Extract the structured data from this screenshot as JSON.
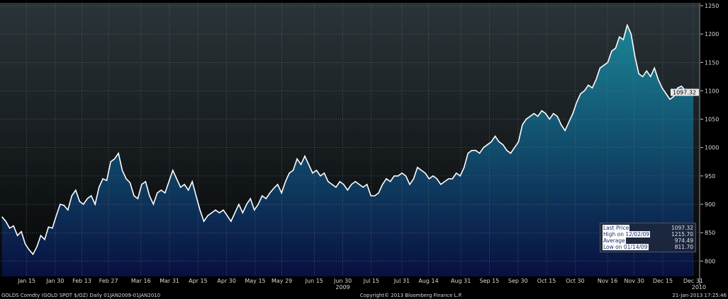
{
  "chart_data": {
    "type": "area",
    "title": "GOLDS Comdty (GOLD SPOT $/OZ)",
    "frequency": "Daily",
    "range_label": "01JAN2009-01JAN2010",
    "x_tick_labels": [
      "Jan 15",
      "Jan 30",
      "Feb 13",
      "Feb 27",
      "Mar 16",
      "Mar 31",
      "Apr 15",
      "Apr 30",
      "May 15",
      "May 29",
      "Jun 15",
      "Jun 30",
      "Jul 15",
      "Jul 31",
      "Aug 14",
      "Aug 31",
      "Sep 15",
      "Sep 30",
      "Oct 15",
      "Oct 30",
      "Nov 16",
      "Nov 30",
      "Dec 15",
      "Dec 31"
    ],
    "x_tick_days": [
      14,
      29,
      43,
      57,
      74,
      89,
      104,
      119,
      134,
      148,
      165,
      180,
      195,
      211,
      225,
      242,
      257,
      272,
      287,
      302,
      319,
      333,
      348,
      364
    ],
    "year_labels": [
      {
        "label": "2009",
        "day": 180
      },
      {
        "label": "2010",
        "day": 364
      }
    ],
    "y_ticks": [
      800,
      850,
      900,
      950,
      1000,
      1050,
      1100,
      1150,
      1200,
      1250
    ],
    "ylim": [
      773,
      1255
    ],
    "x_range_days": [
      0,
      367
    ],
    "values": [
      878,
      870,
      858,
      862,
      845,
      852,
      830,
      820,
      812,
      825,
      845,
      838,
      860,
      858,
      880,
      900,
      898,
      890,
      915,
      925,
      905,
      900,
      910,
      915,
      900,
      930,
      945,
      942,
      975,
      980,
      990,
      960,
      945,
      938,
      915,
      910,
      935,
      940,
      915,
      900,
      920,
      925,
      920,
      940,
      960,
      945,
      930,
      935,
      925,
      940,
      915,
      890,
      870,
      880,
      885,
      890,
      885,
      890,
      880,
      870,
      885,
      900,
      885,
      900,
      910,
      890,
      900,
      915,
      910,
      920,
      928,
      935,
      920,
      940,
      955,
      960,
      980,
      970,
      985,
      970,
      955,
      960,
      950,
      955,
      940,
      935,
      930,
      940,
      935,
      925,
      935,
      940,
      935,
      930,
      935,
      915,
      915,
      920,
      935,
      945,
      940,
      950,
      950,
      955,
      950,
      935,
      945,
      965,
      960,
      955,
      945,
      950,
      945,
      935,
      940,
      945,
      945,
      955,
      950,
      965,
      990,
      995,
      995,
      990,
      1000,
      1005,
      1010,
      1020,
      1010,
      1005,
      995,
      990,
      1000,
      1010,
      1040,
      1050,
      1055,
      1060,
      1055,
      1065,
      1060,
      1050,
      1060,
      1055,
      1040,
      1030,
      1045,
      1060,
      1080,
      1095,
      1100,
      1110,
      1105,
      1120,
      1140,
      1145,
      1150,
      1170,
      1175,
      1195,
      1190,
      1215.7,
      1200,
      1160,
      1130,
      1125,
      1135,
      1125,
      1140,
      1120,
      1105,
      1095,
      1085,
      1090,
      1105,
      1108,
      1100,
      1095,
      1097.32
    ],
    "last_price_label": "1097.32",
    "legend": [
      {
        "label": "Last Price",
        "value": "1097.32"
      },
      {
        "label": "High on 12/02/09",
        "value": "1215.70"
      },
      {
        "label": "Average",
        "value": "974.49"
      },
      {
        "label": "Low on 01/14/09",
        "value": "811.70"
      }
    ],
    "colors": {
      "line": "#ffffff",
      "fill_top": "#1a8595",
      "fill_bottom": "#081040"
    }
  },
  "footer": {
    "left": "GOLDS Comdty (GOLD SPOT $/OZ)  Daily 01JAN2009-01JAN2010",
    "center": "Copyright© 2013 Bloomberg Finance L.P.",
    "right": "21-Jan-2013 17:25:46"
  }
}
